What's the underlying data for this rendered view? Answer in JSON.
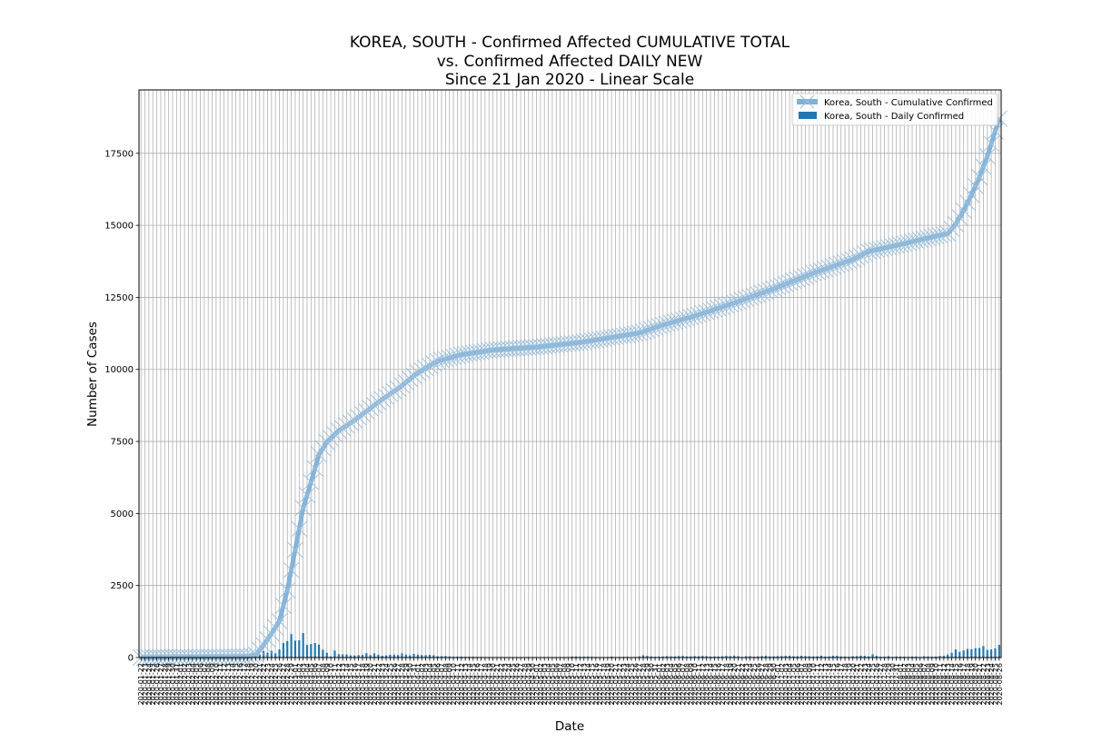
{
  "chart_data": {
    "type": "line",
    "title": [
      "KOREA, SOUTH - Confirmed Affected CUMULATIVE TOTAL",
      "vs. Confirmed Affected DAILY NEW",
      "Since 21 Jan 2020 - Linear Scale"
    ],
    "xlabel": "Date",
    "ylabel": "Number of Cases",
    "ylim": [
      0,
      19700
    ],
    "yticks": [
      0,
      2500,
      5000,
      7500,
      10000,
      12500,
      15000,
      17500
    ],
    "x_range": [
      "2020-01-22",
      "2020-08-26"
    ],
    "grid": true,
    "legend_position": "top-right",
    "series": [
      {
        "name": "Korea, South - Cumulative Confirmed",
        "kind": "line",
        "marker": "x",
        "color": "#7fb0d6",
        "points": [
          [
            "2020-01-22",
            1
          ],
          [
            "2020-02-01",
            12
          ],
          [
            "2020-02-18",
            31
          ],
          [
            "2020-02-20",
            104
          ],
          [
            "2020-02-22",
            433
          ],
          [
            "2020-02-24",
            833
          ],
          [
            "2020-02-26",
            1261
          ],
          [
            "2020-02-28",
            2337
          ],
          [
            "2020-03-01",
            3736
          ],
          [
            "2020-03-03",
            5186
          ],
          [
            "2020-03-05",
            6088
          ],
          [
            "2020-03-07",
            7041
          ],
          [
            "2020-03-09",
            7478
          ],
          [
            "2020-03-12",
            7869
          ],
          [
            "2020-03-16",
            8236
          ],
          [
            "2020-03-20",
            8652
          ],
          [
            "2020-03-23",
            8961
          ],
          [
            "2020-03-27",
            9332
          ],
          [
            "2020-04-01",
            9887
          ],
          [
            "2020-04-06",
            10284
          ],
          [
            "2020-04-12",
            10512
          ],
          [
            "2020-04-20",
            10674
          ],
          [
            "2020-05-01",
            10774
          ],
          [
            "2020-05-12",
            10936
          ],
          [
            "2020-05-20",
            11110
          ],
          [
            "2020-05-27",
            11265
          ],
          [
            "2020-06-01",
            11503
          ],
          [
            "2020-06-10",
            11852
          ],
          [
            "2020-06-20",
            12306
          ],
          [
            "2020-06-30",
            12800
          ],
          [
            "2020-07-10",
            13338
          ],
          [
            "2020-07-20",
            13816
          ],
          [
            "2020-07-24",
            14092
          ],
          [
            "2020-08-01",
            14336
          ],
          [
            "2020-08-10",
            14626
          ],
          [
            "2020-08-13",
            14714
          ],
          [
            "2020-08-15",
            15039
          ],
          [
            "2020-08-17",
            15515
          ],
          [
            "2020-08-19",
            16058
          ],
          [
            "2020-08-21",
            16670
          ],
          [
            "2020-08-23",
            17399
          ],
          [
            "2020-08-25",
            18265
          ],
          [
            "2020-08-26",
            18706
          ]
        ]
      },
      {
        "name": "Korea, South - Daily Confirmed",
        "kind": "bar",
        "color": "#1f77b4",
        "points": [
          [
            "2020-02-20",
            73
          ],
          [
            "2020-02-21",
            100
          ],
          [
            "2020-02-22",
            229
          ],
          [
            "2020-02-23",
            169
          ],
          [
            "2020-02-24",
            231
          ],
          [
            "2020-02-25",
            144
          ],
          [
            "2020-02-26",
            284
          ],
          [
            "2020-02-27",
            505
          ],
          [
            "2020-02-28",
            571
          ],
          [
            "2020-02-29",
            813
          ],
          [
            "2020-03-01",
            586
          ],
          [
            "2020-03-02",
            599
          ],
          [
            "2020-03-03",
            851
          ],
          [
            "2020-03-04",
            435
          ],
          [
            "2020-03-05",
            467
          ],
          [
            "2020-03-06",
            505
          ],
          [
            "2020-03-07",
            448
          ],
          [
            "2020-03-08",
            272
          ],
          [
            "2020-03-09",
            165
          ],
          [
            "2020-03-10",
            35
          ],
          [
            "2020-03-11",
            242
          ],
          [
            "2020-03-12",
            114
          ],
          [
            "2020-03-13",
            110
          ],
          [
            "2020-03-14",
            107
          ],
          [
            "2020-03-15",
            76
          ],
          [
            "2020-03-16",
            74
          ],
          [
            "2020-03-17",
            84
          ],
          [
            "2020-03-18",
            93
          ],
          [
            "2020-03-19",
            152
          ],
          [
            "2020-03-20",
            87
          ],
          [
            "2020-03-21",
            147
          ],
          [
            "2020-03-22",
            98
          ],
          [
            "2020-03-23",
            64
          ],
          [
            "2020-03-24",
            76
          ],
          [
            "2020-03-25",
            100
          ],
          [
            "2020-03-26",
            104
          ],
          [
            "2020-03-27",
            91
          ],
          [
            "2020-03-28",
            146
          ],
          [
            "2020-03-29",
            105
          ],
          [
            "2020-03-30",
            78
          ],
          [
            "2020-03-31",
            125
          ],
          [
            "2020-04-01",
            101
          ],
          [
            "2020-04-02",
            89
          ],
          [
            "2020-04-03",
            86
          ],
          [
            "2020-04-04",
            94
          ],
          [
            "2020-04-05",
            81
          ],
          [
            "2020-04-06",
            47
          ],
          [
            "2020-04-07",
            47
          ],
          [
            "2020-04-08",
            53
          ],
          [
            "2020-04-09",
            39
          ],
          [
            "2020-04-10",
            27
          ],
          [
            "2020-04-11",
            30
          ],
          [
            "2020-04-12",
            32
          ],
          [
            "2020-04-13",
            25
          ],
          [
            "2020-04-14",
            27
          ],
          [
            "2020-04-15",
            27
          ],
          [
            "2020-04-16",
            22
          ],
          [
            "2020-04-17",
            22
          ],
          [
            "2020-04-18",
            18
          ],
          [
            "2020-04-19",
            8
          ],
          [
            "2020-04-20",
            13
          ],
          [
            "2020-04-21",
            9
          ],
          [
            "2020-04-22",
            11
          ],
          [
            "2020-04-23",
            8
          ],
          [
            "2020-04-24",
            6
          ],
          [
            "2020-04-25",
            10
          ],
          [
            "2020-04-26",
            10
          ],
          [
            "2020-04-27",
            10
          ],
          [
            "2020-04-28",
            14
          ],
          [
            "2020-04-29",
            9
          ],
          [
            "2020-04-30",
            4
          ],
          [
            "2020-05-01",
            9
          ],
          [
            "2020-05-02",
            6
          ],
          [
            "2020-05-03",
            13
          ],
          [
            "2020-05-04",
            8
          ],
          [
            "2020-05-05",
            3
          ],
          [
            "2020-05-06",
            2
          ],
          [
            "2020-05-07",
            4
          ],
          [
            "2020-05-08",
            12
          ],
          [
            "2020-05-09",
            18
          ],
          [
            "2020-05-10",
            34
          ],
          [
            "2020-05-11",
            35
          ],
          [
            "2020-05-12",
            27
          ],
          [
            "2020-05-13",
            26
          ],
          [
            "2020-05-14",
            29
          ],
          [
            "2020-05-15",
            27
          ],
          [
            "2020-05-16",
            19
          ],
          [
            "2020-05-17",
            13
          ],
          [
            "2020-05-18",
            15
          ],
          [
            "2020-05-19",
            13
          ],
          [
            "2020-05-20",
            32
          ],
          [
            "2020-05-21",
            12
          ],
          [
            "2020-05-22",
            20
          ],
          [
            "2020-05-23",
            23
          ],
          [
            "2020-05-24",
            25
          ],
          [
            "2020-05-25",
            16
          ],
          [
            "2020-05-26",
            19
          ],
          [
            "2020-05-27",
            40
          ],
          [
            "2020-05-28",
            79
          ],
          [
            "2020-05-29",
            58
          ],
          [
            "2020-05-30",
            39
          ],
          [
            "2020-05-31",
            27
          ],
          [
            "2020-06-01",
            35
          ],
          [
            "2020-06-02",
            38
          ],
          [
            "2020-06-03",
            49
          ],
          [
            "2020-06-04",
            39
          ],
          [
            "2020-06-05",
            39
          ],
          [
            "2020-06-06",
            51
          ],
          [
            "2020-06-07",
            57
          ],
          [
            "2020-06-08",
            38
          ],
          [
            "2020-06-09",
            38
          ],
          [
            "2020-06-10",
            50
          ],
          [
            "2020-06-11",
            45
          ],
          [
            "2020-06-12",
            56
          ],
          [
            "2020-06-13",
            49
          ],
          [
            "2020-06-14",
            34
          ],
          [
            "2020-06-15",
            37
          ],
          [
            "2020-06-16",
            34
          ],
          [
            "2020-06-17",
            43
          ],
          [
            "2020-06-18",
            59
          ],
          [
            "2020-06-19",
            49
          ],
          [
            "2020-06-20",
            67
          ],
          [
            "2020-06-21",
            48
          ],
          [
            "2020-06-22",
            17
          ],
          [
            "2020-06-23",
            46
          ],
          [
            "2020-06-24",
            51
          ],
          [
            "2020-06-25",
            28
          ],
          [
            "2020-06-26",
            39
          ],
          [
            "2020-06-27",
            51
          ],
          [
            "2020-06-28",
            62
          ],
          [
            "2020-06-29",
            42
          ],
          [
            "2020-06-30",
            43
          ],
          [
            "2020-07-01",
            51
          ],
          [
            "2020-07-02",
            54
          ],
          [
            "2020-07-03",
            63
          ],
          [
            "2020-07-04",
            61
          ],
          [
            "2020-07-05",
            48
          ],
          [
            "2020-07-06",
            44
          ],
          [
            "2020-07-07",
            63
          ],
          [
            "2020-07-08",
            50
          ],
          [
            "2020-07-09",
            45
          ],
          [
            "2020-07-10",
            35
          ],
          [
            "2020-07-11",
            44
          ],
          [
            "2020-07-12",
            62
          ],
          [
            "2020-07-13",
            33
          ],
          [
            "2020-07-14",
            39
          ],
          [
            "2020-07-15",
            61
          ],
          [
            "2020-07-16",
            60
          ],
          [
            "2020-07-17",
            39
          ],
          [
            "2020-07-18",
            34
          ],
          [
            "2020-07-19",
            26
          ],
          [
            "2020-07-20",
            45
          ],
          [
            "2020-07-21",
            45
          ],
          [
            "2020-07-22",
            63
          ],
          [
            "2020-07-23",
            59
          ],
          [
            "2020-07-24",
            41
          ],
          [
            "2020-07-25",
            113
          ],
          [
            "2020-07-26",
            58
          ],
          [
            "2020-07-27",
            25
          ],
          [
            "2020-07-28",
            28
          ],
          [
            "2020-07-29",
            48
          ],
          [
            "2020-07-30",
            18
          ],
          [
            "2020-07-31",
            36
          ],
          [
            "2020-08-01",
            31
          ],
          [
            "2020-08-02",
            30
          ],
          [
            "2020-08-03",
            23
          ],
          [
            "2020-08-04",
            34
          ],
          [
            "2020-08-05",
            33
          ],
          [
            "2020-08-06",
            20
          ],
          [
            "2020-08-07",
            43
          ],
          [
            "2020-08-08",
            36
          ],
          [
            "2020-08-09",
            28
          ],
          [
            "2020-08-10",
            34
          ],
          [
            "2020-08-11",
            54
          ],
          [
            "2020-08-12",
            56
          ],
          [
            "2020-08-13",
            103
          ],
          [
            "2020-08-14",
            166
          ],
          [
            "2020-08-15",
            279
          ],
          [
            "2020-08-16",
            197
          ],
          [
            "2020-08-17",
            246
          ],
          [
            "2020-08-18",
            297
          ],
          [
            "2020-08-19",
            288
          ],
          [
            "2020-08-20",
            324
          ],
          [
            "2020-08-21",
            332
          ],
          [
            "2020-08-22",
            397
          ],
          [
            "2020-08-23",
            266
          ],
          [
            "2020-08-24",
            280
          ],
          [
            "2020-08-25",
            320
          ],
          [
            "2020-08-26",
            441
          ]
        ]
      }
    ]
  }
}
